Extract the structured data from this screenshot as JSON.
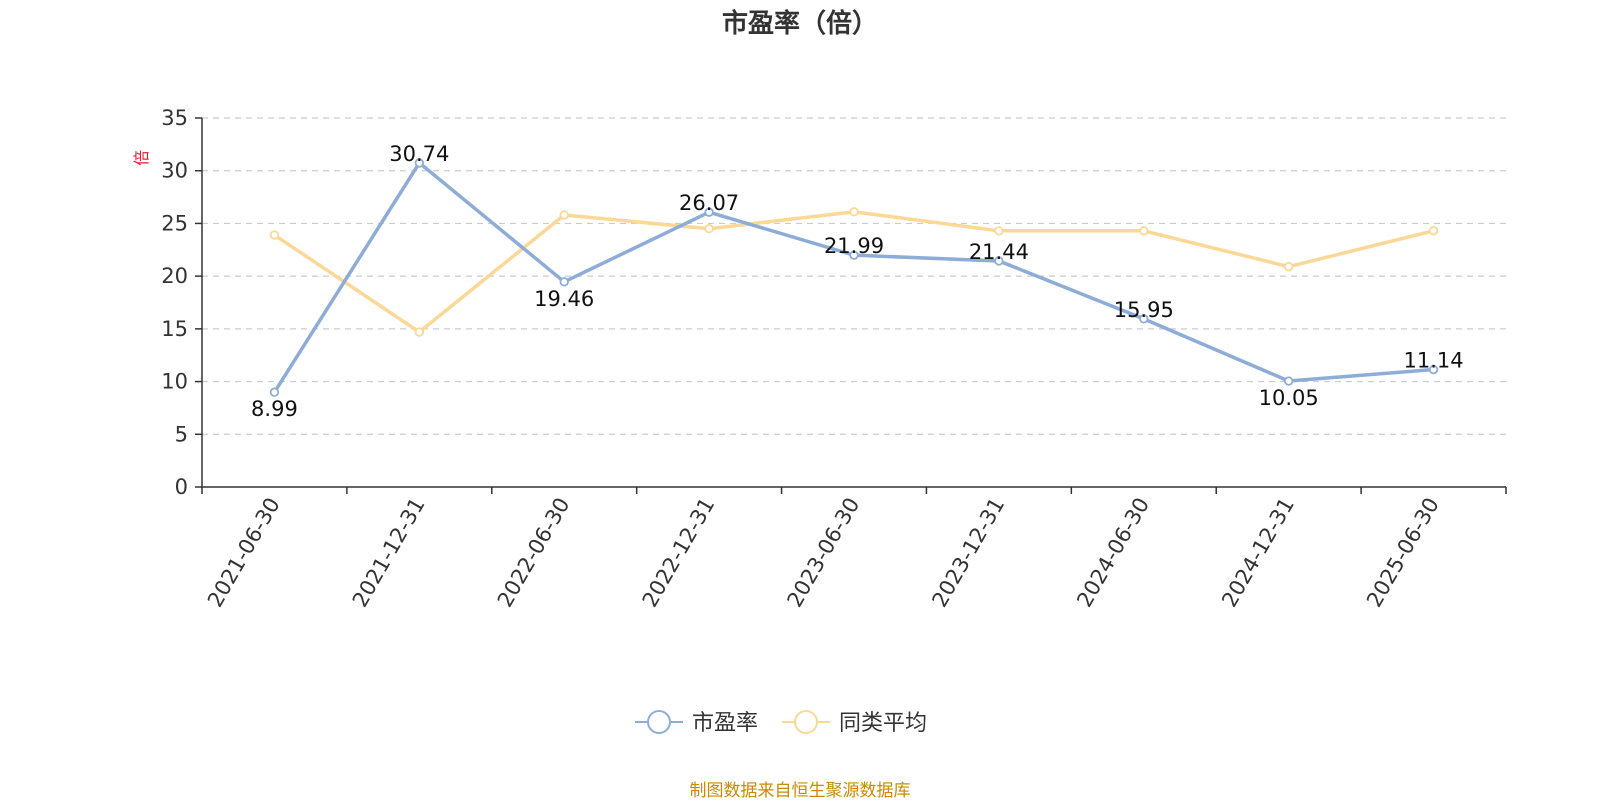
{
  "title": "市盈率（倍）",
  "unit_label": "倍",
  "source_note": "制图数据来自恒生聚源数据库",
  "colors": {
    "pe": "#8eacd8",
    "avg": "#fbd895",
    "unit": "#e8192c",
    "source": "#cc8a00",
    "axis": "#333333",
    "grid": "#cccccc"
  },
  "chart_data": {
    "type": "line",
    "title": "市盈率（倍）",
    "categories": [
      "2021-06-30",
      "2021-12-31",
      "2022-06-30",
      "2022-12-31",
      "2023-06-30",
      "2023-12-31",
      "2024-06-30",
      "2024-12-31",
      "2025-06-30"
    ],
    "series": [
      {
        "name": "市盈率",
        "values": [
          8.99,
          30.74,
          19.46,
          26.07,
          21.99,
          21.44,
          15.95,
          10.05,
          11.14
        ],
        "labels": [
          "8.99",
          "30.74",
          "19.46",
          "26.07",
          "21.99",
          "21.44",
          "15.95",
          "10.05",
          "11.14"
        ],
        "color": "#8eacd8"
      },
      {
        "name": "同类平均",
        "values": [
          23.9,
          14.7,
          25.8,
          24.5,
          26.1,
          24.3,
          24.3,
          20.9,
          24.3
        ],
        "color": "#fbd895"
      }
    ],
    "ylabel": "倍",
    "ylim": [
      0,
      35
    ],
    "yticks": [
      0,
      5,
      10,
      15,
      20,
      25,
      30,
      35
    ],
    "grid": true,
    "legend": "bottom-center"
  }
}
